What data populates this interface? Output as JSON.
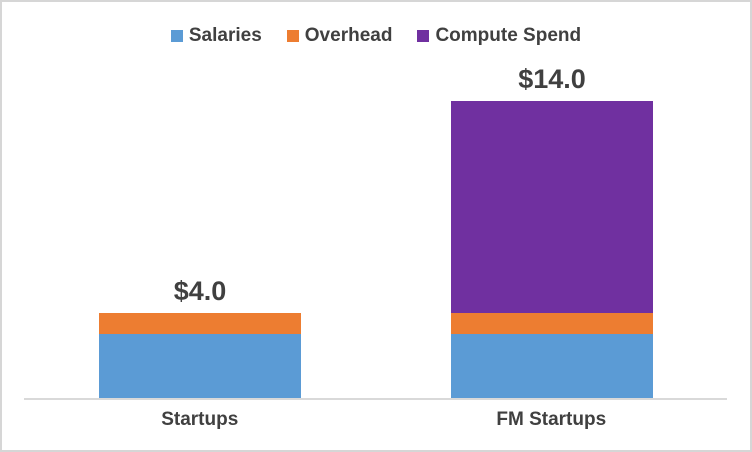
{
  "chart_data": {
    "type": "bar",
    "stacked": true,
    "categories": [
      "Startups",
      "FM Startups"
    ],
    "series": [
      {
        "name": "Salaries",
        "color": "#5B9BD5",
        "values": [
          3.0,
          3.0
        ]
      },
      {
        "name": "Overhead",
        "color": "#ED7D31",
        "values": [
          1.0,
          1.0
        ]
      },
      {
        "name": "Compute Spend",
        "color": "#7030A0",
        "values": [
          0.0,
          10.0
        ]
      }
    ],
    "totals": [
      4.0,
      14.0
    ],
    "total_labels": [
      "$4.0",
      "$14.0"
    ],
    "ylim": [
      0,
      14
    ],
    "legend_position": "top",
    "grid": false,
    "axis_line_color": "#D9D9D9",
    "text_color": "#404040",
    "frame_border_color": "#D6D6D6",
    "background": "#FFFFFF"
  }
}
